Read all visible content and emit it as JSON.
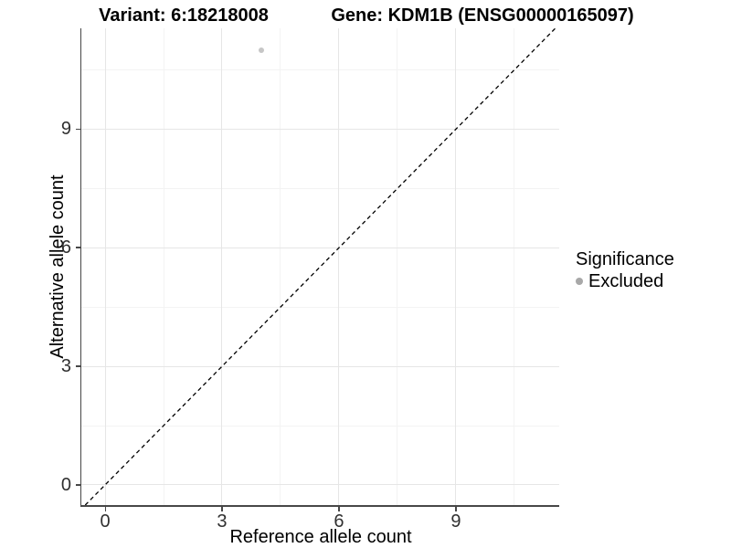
{
  "plot": {
    "title_left": "Variant: 6:18218008",
    "title_right": "Gene: KDM1B (ENSG00000165097)"
  },
  "chart_data": {
    "type": "scatter",
    "title": "Variant: 6:18218008 / Gene: KDM1B (ENSG00000165097)",
    "xlabel": "Reference allele count",
    "ylabel": "Alternative allele count",
    "x_ticks": [
      0,
      3,
      6,
      9
    ],
    "y_ticks": [
      0,
      3,
      6,
      9
    ],
    "x_minor_ticks": [
      1.5,
      4.5,
      7.5,
      10.5
    ],
    "y_minor_ticks": [
      1.5,
      4.5,
      7.5,
      10.5
    ],
    "xlim": [
      -0.61,
      11.65
    ],
    "ylim": [
      -0.51,
      11.55
    ],
    "grid": "major+minor",
    "series": [
      {
        "name": "Excluded",
        "points": [
          {
            "x": 4,
            "y": 11
          }
        ]
      }
    ],
    "reference_line": {
      "kind": "abline",
      "slope": 1,
      "intercept": 0,
      "linetype": "dashed"
    },
    "legend": {
      "title": "Significance",
      "position": "right",
      "entries": [
        {
          "label": "Excluded"
        }
      ]
    }
  },
  "colors": {
    "background": "#ffffff",
    "grid_major": "#e6e6e6",
    "grid_minor": "#f3f3f3",
    "axis_line": "#474747",
    "tick_label": "#303030",
    "title_text": "#000000",
    "point": "#c6c6c6",
    "legend_dot": "#a8a8a8",
    "reference_line": "#000000"
  }
}
